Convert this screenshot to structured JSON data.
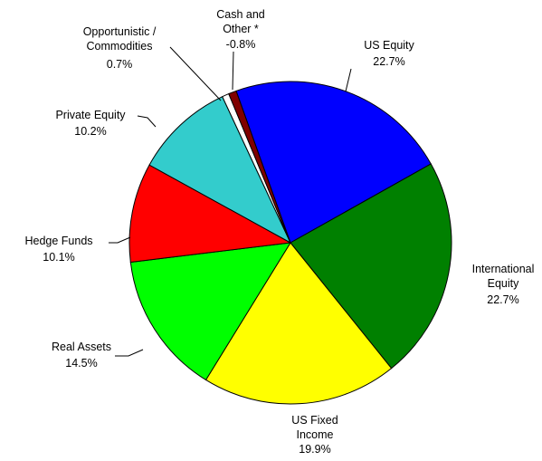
{
  "chart_data": {
    "type": "pie",
    "categories": [
      "US Equity",
      "International Equity",
      "US Fixed Income",
      "Real Assets",
      "Hedge Funds",
      "Private Equity",
      "Opportunistic / Commodities",
      "Cash and Other *"
    ],
    "values": [
      22.7,
      22.7,
      19.9,
      14.5,
      10.1,
      10.2,
      0.7,
      -0.8
    ],
    "value_labels": [
      "22.7%",
      "22.7%",
      "19.9%",
      "14.5%",
      "10.1%",
      "10.2%",
      "0.7%",
      "-0.8%"
    ],
    "colors": [
      "#0000ff",
      "#008000",
      "#ffff00",
      "#00ff00",
      "#ff0000",
      "#33cccc",
      "#ffffff",
      "#800000"
    ]
  }
}
